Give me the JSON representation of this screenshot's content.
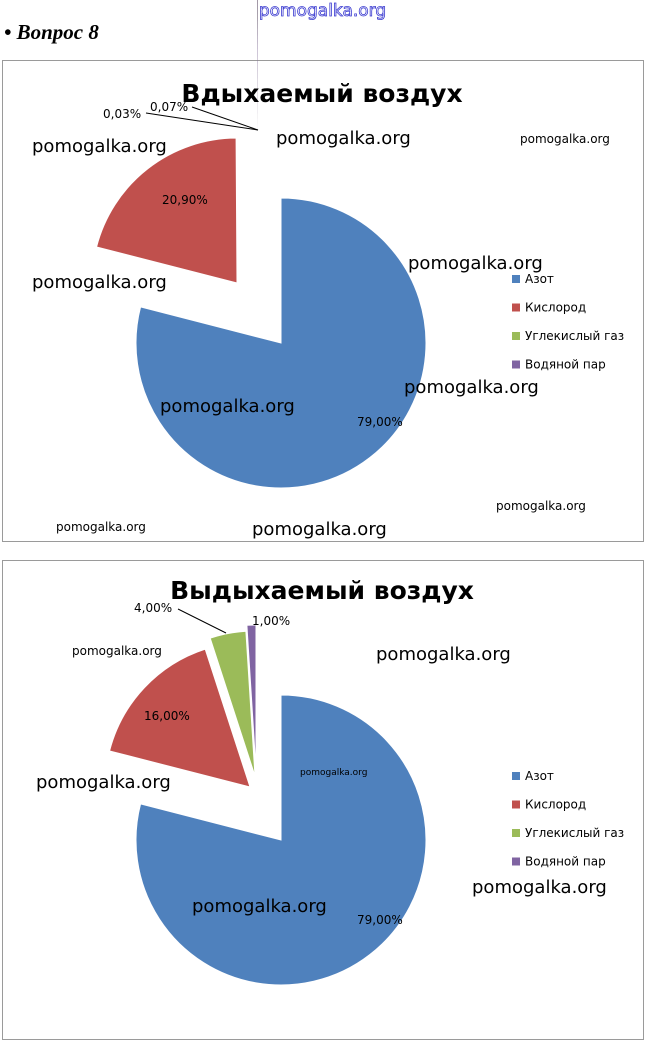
{
  "header": {
    "site": "pomogalka.org",
    "question": "• Вопрос 8"
  },
  "colors": {
    "Азот": "#4f81bd",
    "Кислород": "#c0504d",
    "Углекислый газ": "#9bbb59",
    "Водяной пар": "#8064a2"
  },
  "chart_data": [
    {
      "type": "pie",
      "title": "Вдыхаемый воздух",
      "categories": [
        "Азот",
        "Кислород",
        "Углекислый газ",
        "Водяной пар"
      ],
      "values": [
        79.0,
        20.9,
        0.03,
        0.07
      ],
      "labels": [
        "79,00%",
        "20,90%",
        "0,03%",
        "0,07%"
      ],
      "legend": "right"
    },
    {
      "type": "pie",
      "title": "Выдыхаемый воздух",
      "categories": [
        "Азот",
        "Кислород",
        "Углекислый газ",
        "Водяной пар"
      ],
      "values": [
        79.0,
        16.0,
        4.0,
        1.0
      ],
      "labels": [
        "79,00%",
        "16,00%",
        "4,00%",
        "1,00%"
      ],
      "legend": "right"
    }
  ],
  "watermarks": [
    "pomogalka.org",
    "pomogalka.org",
    "pomogalka.org",
    "pomogalka.org",
    "pomogalka.org",
    "pomogalka.org",
    "pomogalka.org",
    "pomogalka.org",
    "pomogalka.org",
    "pomogalka.org",
    "pomogalka.org",
    "pomogalka.org",
    "pomogalka.org",
    "pomogalka.org",
    "pomogalka.org"
  ]
}
